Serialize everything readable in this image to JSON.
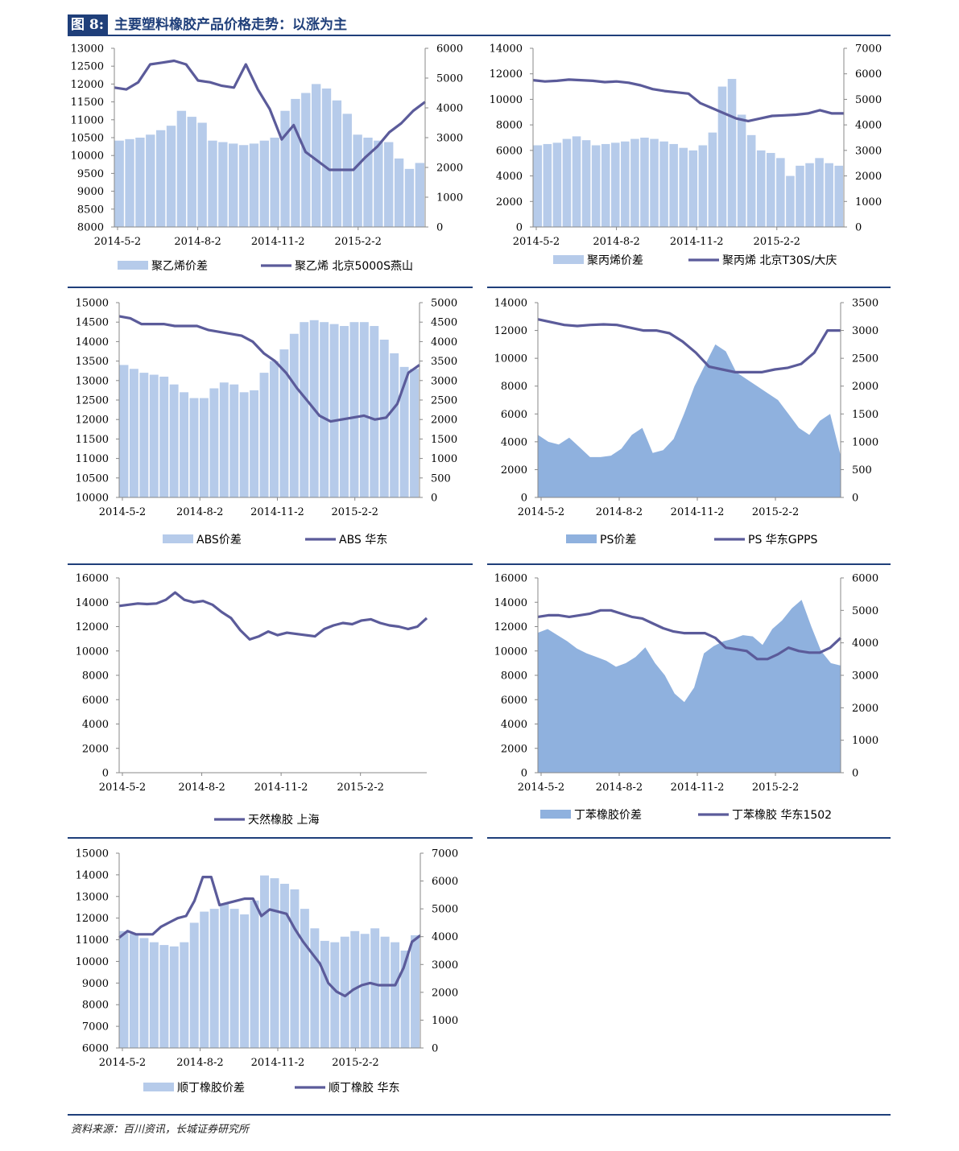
{
  "header": {
    "tag": "图 8:",
    "title": "主要塑料橡胶产品价格走势：以涨为主"
  },
  "source": "资料来源：百川资讯，长城证券研究所",
  "colors": {
    "accent": "#1f3f7a",
    "line": "#5b5b9a",
    "bar_light": "#b6cbea",
    "area": "#8fb1de"
  },
  "chart_data": [
    {
      "type": "bar+line",
      "x_ticks": [
        "2014-5-2",
        "2014-8-2",
        "2014-11-2",
        "2015-2-2"
      ],
      "yleft": {
        "min": 8000,
        "max": 13000,
        "step": 500
      },
      "yright": {
        "min": 0,
        "max": 6000,
        "step": 1000
      },
      "bar_style": "bars",
      "series": [
        {
          "name": "聚乙烯价差",
          "axis": "right",
          "kind": "bar",
          "values": [
            2900,
            2950,
            3000,
            3100,
            3250,
            3400,
            3900,
            3700,
            3500,
            2900,
            2850,
            2800,
            2750,
            2800,
            2900,
            3000,
            3900,
            4300,
            4500,
            4800,
            4650,
            4250,
            3800,
            3100,
            3000,
            2900,
            2850,
            2300,
            1950,
            2150
          ]
        },
        {
          "name": "聚乙烯 北京5000S燕山",
          "axis": "left",
          "kind": "line",
          "values": [
            11900,
            11850,
            12050,
            12550,
            12600,
            12650,
            12550,
            12100,
            12050,
            11950,
            11900,
            12550,
            11850,
            11300,
            10450,
            10850,
            10100,
            9850,
            9600,
            9600,
            9600,
            9950,
            10250,
            10650,
            10900,
            11250,
            11500
          ]
        }
      ]
    },
    {
      "type": "bar+line",
      "x_ticks": [
        "2014-5-2",
        "2014-8-2",
        "2014-11-2",
        "2015-2-2"
      ],
      "yleft": {
        "min": 0,
        "max": 14000,
        "step": 2000
      },
      "yright": {
        "min": 0,
        "max": 7000,
        "step": 1000
      },
      "bar_style": "bars",
      "series": [
        {
          "name": "聚丙烯价差",
          "axis": "right",
          "kind": "bar",
          "values": [
            3200,
            3250,
            3300,
            3450,
            3550,
            3400,
            3200,
            3250,
            3300,
            3350,
            3450,
            3500,
            3450,
            3350,
            3250,
            3100,
            3000,
            3200,
            3700,
            5500,
            5800,
            4400,
            3600,
            3000,
            2900,
            2700,
            2000,
            2400,
            2500,
            2700,
            2500,
            2400
          ]
        },
        {
          "name": "聚丙烯 北京T30S/大庆",
          "axis": "left",
          "kind": "line",
          "values": [
            11500,
            11400,
            11450,
            11550,
            11500,
            11450,
            11350,
            11400,
            11300,
            11100,
            10800,
            10650,
            10550,
            10450,
            9700,
            9300,
            8900,
            8500,
            8300,
            8500,
            8700,
            8750,
            8800,
            8900,
            9150,
            8900,
            8900
          ]
        }
      ]
    },
    {
      "type": "bar+line",
      "x_ticks": [
        "2014-5-2",
        "2014-8-2",
        "2014-11-2",
        "2015-2-2"
      ],
      "yleft": {
        "min": 10000,
        "max": 15000,
        "step": 500
      },
      "yright": {
        "min": 0,
        "max": 5000,
        "step": 500
      },
      "bar_style": "bars",
      "series": [
        {
          "name": "ABS价差",
          "axis": "right",
          "kind": "bar",
          "values": [
            3400,
            3300,
            3200,
            3150,
            3100,
            2900,
            2700,
            2550,
            2550,
            2800,
            2950,
            2900,
            2700,
            2750,
            3200,
            3500,
            3800,
            4200,
            4500,
            4550,
            4500,
            4450,
            4400,
            4500,
            4500,
            4400,
            4050,
            3700,
            3350,
            3300
          ]
        },
        {
          "name": "ABS 华东",
          "axis": "left",
          "kind": "line",
          "values": [
            14650,
            14600,
            14450,
            14450,
            14450,
            14400,
            14400,
            14400,
            14300,
            14250,
            14200,
            14150,
            14000,
            13700,
            13500,
            13200,
            12800,
            12450,
            12100,
            11950,
            12000,
            12050,
            12100,
            12000,
            12050,
            12400,
            13200,
            13400
          ]
        }
      ]
    },
    {
      "type": "area+line",
      "x_ticks": [
        "2014-5-2",
        "2014-8-2",
        "2014-11-2",
        "2015-2-2"
      ],
      "yleft": {
        "min": 0,
        "max": 14000,
        "step": 2000
      },
      "yright": {
        "min": 0,
        "max": 3500,
        "step": 500
      },
      "bar_style": "area",
      "series": [
        {
          "name": "PS价差",
          "axis": "left",
          "kind": "area",
          "values": [
            4500,
            4000,
            3800,
            4300,
            3600,
            2900,
            2900,
            3000,
            3500,
            4500,
            5000,
            3200,
            3400,
            4200,
            6000,
            8000,
            9500,
            11000,
            10500,
            9000,
            8500,
            8000,
            7500,
            7000,
            6000,
            5000,
            4500,
            5500,
            6000,
            3000
          ]
        },
        {
          "name": "PS 华东GPPS",
          "axis": "right",
          "kind": "line",
          "values": [
            3200,
            3150,
            3100,
            3080,
            3100,
            3110,
            3100,
            3050,
            3000,
            3000,
            2950,
            2800,
            2600,
            2350,
            2300,
            2250,
            2250,
            2250,
            2300,
            2330,
            2400,
            2600,
            3000,
            3000
          ]
        }
      ]
    },
    {
      "type": "line",
      "x_ticks": [
        "2014-5-2",
        "2014-8-2",
        "2014-11-2",
        "2015-2-2"
      ],
      "yleft": {
        "min": 0,
        "max": 16000,
        "step": 2000
      },
      "series": [
        {
          "name": "天然橡胶 上海",
          "axis": "left",
          "kind": "line",
          "values": [
            13700,
            13800,
            13900,
            13850,
            13900,
            14200,
            14800,
            14200,
            14000,
            14100,
            13800,
            13200,
            12700,
            11700,
            10950,
            11200,
            11600,
            11300,
            11500,
            11400,
            11300,
            11200,
            11800,
            12100,
            12300,
            12200,
            12500,
            12600,
            12300,
            12100,
            12000,
            11800,
            12000,
            12700
          ]
        }
      ]
    },
    {
      "type": "area+line",
      "x_ticks": [
        "2014-5-2",
        "2014-8-2",
        "2014-11-2",
        "2015-2-2"
      ],
      "yleft": {
        "min": 0,
        "max": 16000,
        "step": 2000
      },
      "yright": {
        "min": 0,
        "max": 6000,
        "step": 1000
      },
      "bar_style": "area",
      "series": [
        {
          "name": "丁苯橡胶价差",
          "axis": "left",
          "kind": "area",
          "values": [
            11500,
            11800,
            11300,
            10800,
            10200,
            9800,
            9500,
            9200,
            8700,
            9000,
            9500,
            10300,
            9000,
            8000,
            6500,
            5800,
            7000,
            9800,
            10400,
            10800,
            11000,
            11300,
            11200,
            10500,
            11800,
            12500,
            13500,
            14200,
            12000,
            10000,
            9000,
            8800
          ]
        },
        {
          "name": "丁苯橡胶 华东1502",
          "axis": "right",
          "kind": "line",
          "values": [
            4800,
            4850,
            4850,
            4800,
            4850,
            4900,
            5000,
            5000,
            4900,
            4800,
            4750,
            4600,
            4450,
            4350,
            4300,
            4300,
            4300,
            4150,
            3850,
            3800,
            3750,
            3500,
            3500,
            3650,
            3850,
            3750,
            3700,
            3700,
            3850,
            4150
          ]
        }
      ]
    },
    {
      "type": "bar+line",
      "x_ticks": [
        "2014-5-2",
        "2014-8-2",
        "2014-11-2",
        "2015-2-2"
      ],
      "yleft": {
        "min": 6000,
        "max": 15000,
        "step": 1000
      },
      "yright": {
        "min": 0,
        "max": 7000,
        "step": 1000
      },
      "bar_style": "bars",
      "series": [
        {
          "name": "顺丁橡胶价差",
          "axis": "right",
          "kind": "bar",
          "values": [
            4200,
            4100,
            3950,
            3800,
            3700,
            3650,
            3800,
            4500,
            4900,
            5000,
            5200,
            5000,
            4800,
            5300,
            6200,
            6100,
            5900,
            5700,
            5000,
            4300,
            3850,
            3800,
            4000,
            4200,
            4100,
            4300,
            4000,
            3800,
            3500,
            4050
          ]
        },
        {
          "name": "顺丁橡胶 华东",
          "axis": "left",
          "kind": "line",
          "values": [
            11100,
            11400,
            11250,
            11250,
            11250,
            11600,
            11800,
            12000,
            12100,
            12800,
            13900,
            13900,
            12600,
            12700,
            12800,
            12900,
            12900,
            12100,
            12400,
            12300,
            12200,
            11500,
            10900,
            10400,
            9900,
            9000,
            8600,
            8400,
            8700,
            8900,
            9000,
            8900,
            8900,
            8900,
            9700,
            10900,
            11200
          ]
        }
      ]
    }
  ]
}
